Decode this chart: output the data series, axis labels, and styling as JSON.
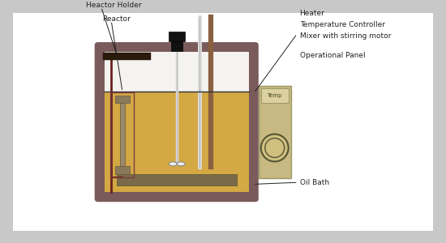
{
  "bg_color": "#c8c8c8",
  "white_area": "#ffffff",
  "oil_bath_fill": "#d4a843",
  "oil_bath_border": "#7a5a5a",
  "oil_bath_top_white": "#f5f3f0",
  "heater_bar_color": "#7a6a4a",
  "panel_color": "#c8b882",
  "panel_border": "#999966",
  "reactor_holder_color": "#2a1a0a",
  "reactor_box_color": "#5a4a3a",
  "reactor_ibeam_color": "#8a7a5a",
  "motor_color": "#111111",
  "stirrer_color": "#cccccc",
  "impeller_color": "#eeeeee",
  "probe_white_color": "#dddddd",
  "probe_brown_color": "#8a6040",
  "label_color": "#222222",
  "font_size": 6.5,
  "labels": {
    "heactor_holder": "Heactor Holder",
    "reactor": "Reactor",
    "heater": "Heater",
    "temp_controller": "Temperature Controller",
    "mixer": "Mixer with stirring motor",
    "op_panel": "Operational Panel",
    "oil_bath": "Oil Bath"
  }
}
